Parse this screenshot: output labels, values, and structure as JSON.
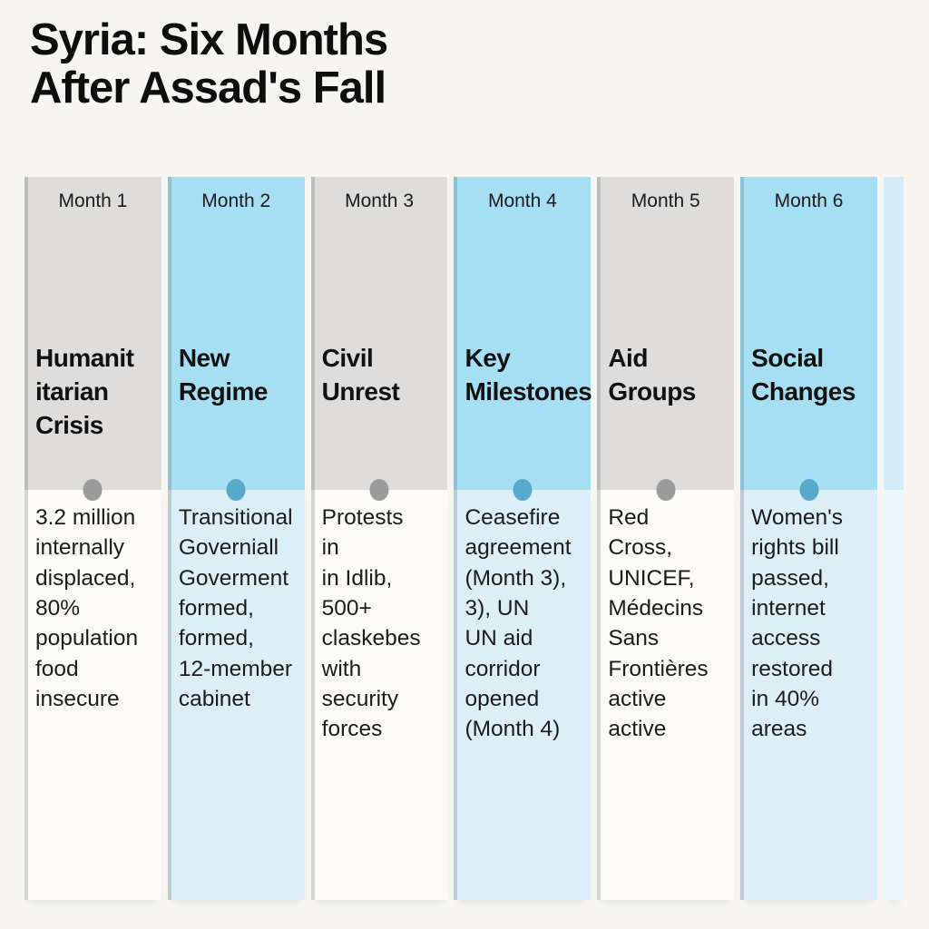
{
  "title": "Syria: Six Months\nAfter Assad's Fall",
  "colors": {
    "page_bg": "#f6f5f2",
    "gray_top": "#dedddb",
    "gray_bottom": "#fbfaf7",
    "blue_top": "#a6dff4",
    "blue_bottom": "#dceef6",
    "partial_top": "#d3ecf7",
    "partial_bottom": "#edf6fa",
    "gray_dot": "#9b9b9b",
    "blue_dot": "#58a9cc",
    "heading_text": "#111111",
    "body_text": "#1c1c1c"
  },
  "columns": [
    {
      "month": "Month 1",
      "heading": "Humanit\nitarian\nCrisis",
      "body": "3.2 million\ninternally\ndisplaced,\n80%\npopulation\nfood\ninsecure"
    },
    {
      "month": "Month 2",
      "heading": "New\nRegime",
      "body": "Transitional\nGoverniall\nGoverment\nformed,\nformed,\n12-member\ncabinet"
    },
    {
      "month": "Month 3",
      "heading": "Civil\nUnrest",
      "body": "Protests\nin\nin Idlib,\n500+\nclaskebes\nwith\nsecurity\nforces"
    },
    {
      "month": "Month 4",
      "heading": "Key\nMilestones",
      "body": "Ceasefire\nagreement\n(Month 3),\n3), UN\nUN aid\ncorridor\nopened\n(Month 4)"
    },
    {
      "month": "Month 5",
      "heading": "Aid\nGroups",
      "body": "Red\nCross,\nUNICEF,\nMédecins\nSans\nFrontières\nactive\nactive"
    },
    {
      "month": "Month 6",
      "heading": "Social\nChanges",
      "body": "Women's\nrights bill\npassed,\ninternet\naccess\nrestored\nin 40%\nareas"
    }
  ]
}
